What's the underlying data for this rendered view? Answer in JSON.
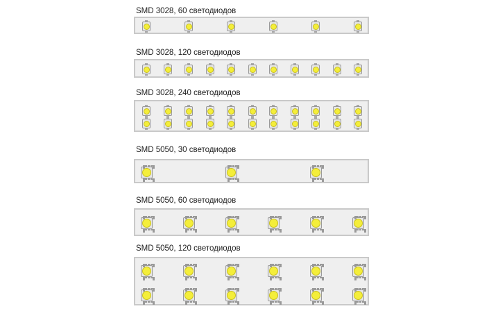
{
  "strips": [
    {
      "label": "SMD 3028, 60 светодиодов",
      "type": "3028",
      "columns": 6,
      "rows": 1
    },
    {
      "label": "SMD 3028, 120 светодиодов",
      "type": "3028",
      "columns": 11,
      "rows": 1
    },
    {
      "label": "SMD 3028, 240 светодиодов",
      "type": "3028",
      "columns": 11,
      "rows": 2
    },
    {
      "label": "SMD 5050, 30 светодиодов",
      "type": "5050",
      "columns": 3,
      "rows": 1
    },
    {
      "label": "SMD 5050, 60 светодиодов",
      "type": "5050",
      "columns": 6,
      "rows": 1
    },
    {
      "label": "SMD 5050, 120 светодиодов",
      "type": "5050",
      "columns": 6,
      "rows": 2
    }
  ],
  "colors": {
    "led": "#f4ee3a",
    "strip": "#efefef",
    "border": "#c9c9c9"
  }
}
